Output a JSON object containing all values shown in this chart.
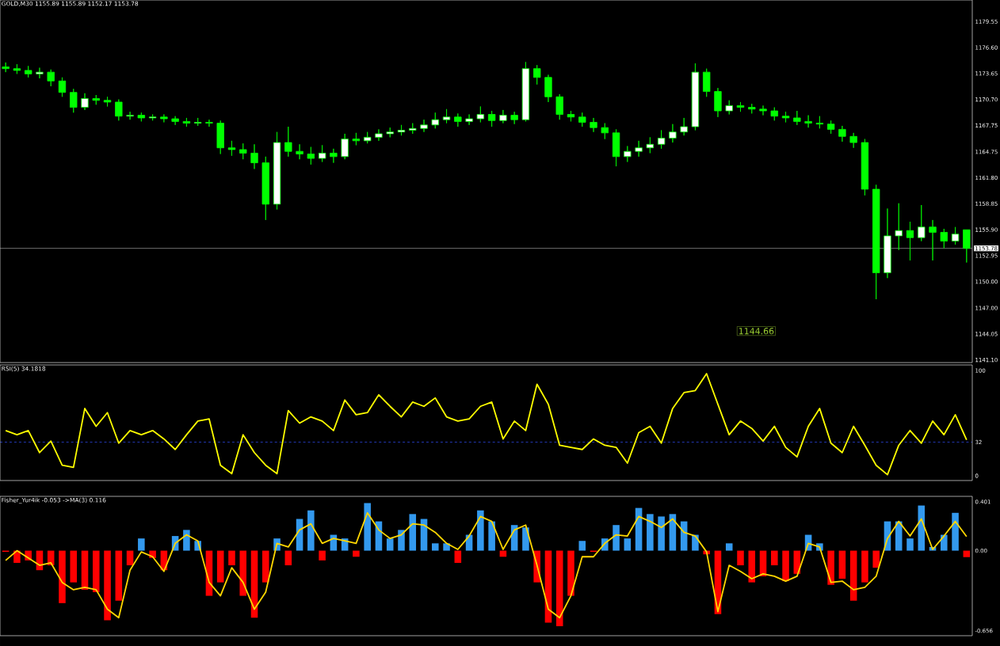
{
  "chart_data": [
    {
      "type": "candlestick",
      "title": "GOLD,M30 1155.89 1155.89 1152.17 1153.78",
      "categories": [
        null,
        null,
        null,
        null,
        null,
        null,
        null,
        null,
        null,
        null,
        null,
        null,
        null,
        null,
        null,
        null,
        null,
        null,
        null,
        null,
        null,
        null,
        null,
        null,
        null,
        null,
        null,
        null,
        null,
        null,
        null,
        null,
        null,
        null,
        null,
        null,
        null,
        null,
        null,
        null,
        null,
        null,
        null,
        null,
        null,
        null,
        null,
        null,
        null,
        null,
        null,
        null,
        null,
        null,
        null,
        null,
        null,
        null,
        null,
        null,
        null,
        null,
        null,
        null,
        null,
        null,
        null,
        null,
        null,
        null,
        null,
        null,
        null,
        null,
        null,
        null,
        null,
        null,
        null,
        null,
        null,
        null,
        null,
        null,
        null,
        null
      ],
      "ohlc": [
        [
          1174.4,
          1174.9,
          1173.8,
          1174.2
        ],
        [
          1174.2,
          1174.7,
          1173.6,
          1174.0
        ],
        [
          1174.0,
          1174.5,
          1173.2,
          1173.6
        ],
        [
          1173.6,
          1174.3,
          1173.1,
          1173.8
        ],
        [
          1173.8,
          1174.1,
          1172.2,
          1172.8
        ],
        [
          1172.8,
          1173.2,
          1171.0,
          1171.5
        ],
        [
          1171.5,
          1171.9,
          1169.2,
          1169.8
        ],
        [
          1169.8,
          1171.4,
          1169.5,
          1170.8
        ],
        [
          1170.8,
          1171.2,
          1170.1,
          1170.6
        ],
        [
          1170.6,
          1171.0,
          1169.9,
          1170.4
        ],
        [
          1170.4,
          1170.7,
          1168.3,
          1168.8
        ],
        [
          1168.8,
          1169.3,
          1168.4,
          1168.9
        ],
        [
          1168.9,
          1169.2,
          1168.2,
          1168.6
        ],
        [
          1168.6,
          1169.0,
          1168.3,
          1168.7
        ],
        [
          1168.7,
          1169.0,
          1168.1,
          1168.5
        ],
        [
          1168.5,
          1168.8,
          1167.8,
          1168.2
        ],
        [
          1168.2,
          1168.6,
          1167.6,
          1168.0
        ],
        [
          1168.0,
          1168.6,
          1167.7,
          1168.1
        ],
        [
          1168.1,
          1168.4,
          1167.6,
          1168.0
        ],
        [
          1168.0,
          1168.3,
          1164.5,
          1165.2
        ],
        [
          1165.2,
          1166.0,
          1164.3,
          1165.0
        ],
        [
          1165.0,
          1165.7,
          1163.9,
          1164.6
        ],
        [
          1164.6,
          1165.6,
          1162.8,
          1163.5
        ],
        [
          1163.5,
          1164.2,
          1157.0,
          1158.8
        ],
        [
          1158.8,
          1167.0,
          1158.2,
          1165.8
        ],
        [
          1165.8,
          1167.6,
          1164.2,
          1164.8
        ],
        [
          1164.8,
          1165.6,
          1163.9,
          1164.5
        ],
        [
          1164.5,
          1165.3,
          1163.3,
          1164.0
        ],
        [
          1164.0,
          1165.5,
          1163.6,
          1164.6
        ],
        [
          1164.6,
          1165.1,
          1163.5,
          1164.2
        ],
        [
          1164.2,
          1166.8,
          1163.9,
          1166.2
        ],
        [
          1166.2,
          1166.9,
          1165.5,
          1166.0
        ],
        [
          1166.0,
          1167.0,
          1165.7,
          1166.4
        ],
        [
          1166.4,
          1167.3,
          1166.0,
          1166.8
        ],
        [
          1166.8,
          1167.5,
          1166.4,
          1167.0
        ],
        [
          1167.0,
          1167.8,
          1166.6,
          1167.2
        ],
        [
          1167.2,
          1168.0,
          1166.8,
          1167.4
        ],
        [
          1167.4,
          1168.4,
          1167.0,
          1167.8
        ],
        [
          1167.8,
          1169.2,
          1167.4,
          1168.4
        ],
        [
          1168.4,
          1169.6,
          1168.0,
          1168.7
        ],
        [
          1168.7,
          1169.1,
          1167.6,
          1168.2
        ],
        [
          1168.2,
          1169.0,
          1167.8,
          1168.5
        ],
        [
          1168.5,
          1169.9,
          1168.1,
          1169.0
        ],
        [
          1169.0,
          1169.4,
          1167.6,
          1168.3
        ],
        [
          1168.3,
          1169.5,
          1168.0,
          1168.9
        ],
        [
          1168.9,
          1169.3,
          1167.9,
          1168.4
        ],
        [
          1168.4,
          1174.95,
          1168.2,
          1174.2
        ],
        [
          1174.2,
          1174.6,
          1172.4,
          1173.2
        ],
        [
          1173.2,
          1173.5,
          1170.4,
          1171.0
        ],
        [
          1171.0,
          1171.3,
          1168.4,
          1169.0
        ],
        [
          1169.0,
          1169.4,
          1168.2,
          1168.7
        ],
        [
          1168.7,
          1169.2,
          1167.6,
          1168.1
        ],
        [
          1168.1,
          1168.6,
          1167.0,
          1167.5
        ],
        [
          1167.5,
          1168.0,
          1166.2,
          1166.9
        ],
        [
          1166.9,
          1167.3,
          1163.1,
          1164.2
        ],
        [
          1164.2,
          1165.4,
          1163.6,
          1164.8
        ],
        [
          1164.8,
          1166.0,
          1164.2,
          1165.2
        ],
        [
          1165.2,
          1166.4,
          1164.6,
          1165.6
        ],
        [
          1165.6,
          1167.2,
          1165.1,
          1166.3
        ],
        [
          1166.3,
          1167.9,
          1165.8,
          1167.0
        ],
        [
          1167.0,
          1168.6,
          1166.6,
          1167.6
        ],
        [
          1167.6,
          1174.8,
          1167.2,
          1173.8
        ],
        [
          1173.8,
          1174.2,
          1171.0,
          1171.6
        ],
        [
          1171.6,
          1172.0,
          1168.7,
          1169.4
        ],
        [
          1169.4,
          1170.6,
          1169.0,
          1170.0
        ],
        [
          1170.0,
          1170.4,
          1169.3,
          1169.8
        ],
        [
          1169.8,
          1170.2,
          1169.1,
          1169.6
        ],
        [
          1169.6,
          1170.0,
          1168.9,
          1169.4
        ],
        [
          1169.4,
          1169.8,
          1168.3,
          1168.8
        ],
        [
          1168.8,
          1169.3,
          1168.1,
          1168.6
        ],
        [
          1168.6,
          1169.4,
          1167.8,
          1168.2
        ],
        [
          1168.2,
          1168.9,
          1167.5,
          1168.0
        ],
        [
          1168.0,
          1168.8,
          1167.4,
          1167.9
        ],
        [
          1167.9,
          1168.3,
          1166.8,
          1167.3
        ],
        [
          1167.3,
          1167.7,
          1165.9,
          1166.5
        ],
        [
          1166.5,
          1166.9,
          1165.2,
          1165.8
        ],
        [
          1165.8,
          1166.2,
          1159.8,
          1160.5
        ],
        [
          1160.5,
          1161.0,
          1148.0,
          1151.0
        ],
        [
          1151.0,
          1158.3,
          1150.4,
          1155.2
        ],
        [
          1155.2,
          1158.9,
          1153.6,
          1155.8
        ],
        [
          1155.8,
          1156.8,
          1152.4,
          1155.0
        ],
        [
          1155.0,
          1158.7,
          1154.6,
          1156.2
        ],
        [
          1156.2,
          1157.0,
          1152.4,
          1155.6
        ],
        [
          1155.6,
          1156.0,
          1153.8,
          1154.6
        ],
        [
          1154.6,
          1156.2,
          1154.2,
          1155.4
        ],
        [
          1155.89,
          1155.89,
          1152.17,
          1153.78
        ]
      ],
      "color": "#00ff00",
      "ylim": [
        1140.8,
        1182.0
      ],
      "yticks": [
        1179.55,
        {
          "value": 1176.6,
          "label": "1176.60"
        },
        1173.65,
        {
          "value": 1170.7,
          "label": "1170.70"
        },
        1167.75,
        1164.75,
        {
          "value": 1161.8,
          "label": "1161.80"
        },
        1158.85,
        {
          "value": 1155.9,
          "label": "1155.90"
        },
        1152.95,
        {
          "value": 1150,
          "label": "1150.00"
        },
        {
          "value": 1147,
          "label": "1147.00"
        },
        1144.05,
        {
          "value": 1141.1,
          "label": "1141.10"
        }
      ],
      "tick_labels": "y",
      "ref_lines": [
        {
          "axis": "y",
          "value": 1153.78,
          "label": "1153.78",
          "color": "#a0a0a0"
        }
      ],
      "annotations": [
        "1144.66"
      ]
    },
    {
      "type": "line",
      "title": "RSI(5) 34.1818",
      "categories": [
        null,
        null,
        null,
        null,
        null,
        null,
        null,
        null,
        null,
        null,
        null,
        null,
        null,
        null,
        null,
        null,
        null,
        null,
        null,
        null,
        null,
        null,
        null,
        null,
        null,
        null,
        null,
        null,
        null,
        null,
        null,
        null,
        null,
        null,
        null,
        null,
        null,
        null,
        null,
        null,
        null,
        null,
        null,
        null,
        null,
        null,
        null,
        null,
        null,
        null,
        null,
        null,
        null,
        null,
        null,
        null,
        null,
        null,
        null,
        null,
        null,
        null,
        null,
        null,
        null,
        null,
        null,
        null,
        null,
        null,
        null,
        null,
        null,
        null,
        null,
        null,
        null,
        null,
        null,
        null,
        null,
        null,
        null,
        null,
        null,
        null
      ],
      "values": [
        43,
        39,
        43,
        22,
        33,
        10,
        8,
        64,
        47,
        60,
        31,
        43,
        39,
        43,
        35,
        25,
        39,
        52,
        54,
        10,
        2,
        39,
        22,
        10,
        2,
        62,
        50,
        56,
        52,
        43,
        72,
        58,
        60,
        77,
        66,
        56,
        70,
        66,
        74,
        56,
        52,
        54,
        66,
        70,
        35,
        52,
        43,
        87,
        68,
        29,
        27,
        25,
        35,
        29,
        27,
        12,
        41,
        47,
        31,
        64,
        79,
        81,
        97,
        68,
        39,
        52,
        45,
        33,
        47,
        27,
        18,
        47,
        64,
        31,
        22,
        47,
        29,
        10,
        1,
        29,
        43,
        31,
        52,
        39,
        58,
        34.2
      ],
      "color": "#ffff00",
      "ylim": [
        -4.5,
        105.3
      ],
      "yticks": [
        0,
        32,
        100
      ],
      "tick_labels": "y",
      "ref_lines": [
        {
          "axis": "y",
          "value": 32,
          "color": "#3050ff",
          "line_style": "dashed"
        }
      ]
    },
    {
      "type": "bar",
      "title": "Fisher_Yur4ik -0.053 ->MA(3) 0.116",
      "categories": [
        null,
        null,
        null,
        null,
        null,
        null,
        null,
        null,
        null,
        null,
        null,
        null,
        null,
        null,
        null,
        null,
        null,
        null,
        null,
        null,
        null,
        null,
        null,
        null,
        null,
        null,
        null,
        null,
        null,
        null,
        null,
        null,
        null,
        null,
        null,
        null,
        null,
        null,
        null,
        null,
        null,
        null,
        null,
        null,
        null,
        null,
        null,
        null,
        null,
        null,
        null,
        null,
        null,
        null,
        null,
        null,
        null,
        null,
        null,
        null,
        null,
        null,
        null,
        null,
        null,
        null,
        null,
        null,
        null,
        null,
        null,
        null,
        null,
        null,
        null,
        null,
        null,
        null,
        null,
        null,
        null,
        null,
        null,
        null,
        null,
        null
      ],
      "values": [
        -0.01,
        -0.1,
        -0.08,
        -0.16,
        -0.12,
        -0.43,
        -0.26,
        -0.32,
        -0.34,
        -0.57,
        -0.41,
        -0.12,
        0.1,
        -0.06,
        -0.16,
        0.12,
        0.17,
        0.08,
        -0.37,
        -0.26,
        -0.12,
        -0.37,
        -0.55,
        -0.26,
        0.1,
        -0.12,
        0.26,
        0.33,
        -0.08,
        0.13,
        0.1,
        -0.05,
        0.39,
        0.24,
        0.1,
        0.17,
        0.3,
        0.26,
        0.06,
        0.06,
        -0.1,
        0.13,
        0.33,
        0.24,
        -0.05,
        0.21,
        0.19,
        -0.26,
        -0.59,
        -0.62,
        -0.37,
        0.08,
        -0.01,
        0.1,
        0.21,
        0.1,
        0.35,
        0.3,
        0.28,
        0.3,
        0.24,
        0.13,
        -0.03,
        -0.52,
        0.06,
        -0.12,
        -0.26,
        -0.21,
        -0.12,
        -0.25,
        -0.19,
        0.13,
        0.06,
        -0.28,
        -0.23,
        -0.41,
        -0.26,
        -0.14,
        0.24,
        0.24,
        0.1,
        0.37,
        0.03,
        0.13,
        0.31,
        -0.053
      ],
      "colors": [
        "#ff0000",
        "#ff0000",
        "#ff0000",
        "#ff0000",
        "#ff0000",
        "#ff0000",
        "#ff0000",
        "#ff0000",
        "#ff0000",
        "#ff0000",
        "#ff0000",
        "#ff0000",
        "#3399ee",
        "#ff0000",
        "#ff0000",
        "#3399ee",
        "#3399ee",
        "#3399ee",
        "#ff0000",
        "#ff0000",
        "#ff0000",
        "#ff0000",
        "#ff0000",
        "#ff0000",
        "#3399ee",
        "#ff0000",
        "#3399ee",
        "#3399ee",
        "#ff0000",
        "#3399ee",
        "#3399ee",
        "#ff0000",
        "#3399ee",
        "#3399ee",
        "#3399ee",
        "#3399ee",
        "#3399ee",
        "#3399ee",
        "#3399ee",
        "#3399ee",
        "#ff0000",
        "#3399ee",
        "#3399ee",
        "#3399ee",
        "#ff0000",
        "#3399ee",
        "#3399ee",
        "#ff0000",
        "#ff0000",
        "#ff0000",
        "#ff0000",
        "#3399ee",
        "#ff0000",
        "#3399ee",
        "#3399ee",
        "#3399ee",
        "#3399ee",
        "#3399ee",
        "#3399ee",
        "#3399ee",
        "#3399ee",
        "#3399ee",
        "#ff0000",
        "#ff0000",
        "#3399ee",
        "#ff0000",
        "#ff0000",
        "#ff0000",
        "#ff0000",
        "#ff0000",
        "#ff0000",
        "#3399ee",
        "#3399ee",
        "#ff0000",
        "#ff0000",
        "#ff0000",
        "#ff0000",
        "#ff0000",
        "#3399ee",
        "#3399ee",
        "#3399ee",
        "#3399ee",
        "#3399ee",
        "#3399ee",
        "#3399ee",
        "#ff0000"
      ],
      "ylim": [
        -0.697,
        0.445
      ],
      "yticks": [
        0.401,
        {
          "value": 0,
          "label": "0.00"
        },
        -0.656
      ],
      "tick_labels": "y"
    },
    {
      "type": "line",
      "categories": [
        null,
        null,
        null,
        null,
        null,
        null,
        null,
        null,
        null,
        null,
        null,
        null,
        null,
        null,
        null,
        null,
        null,
        null,
        null,
        null,
        null,
        null,
        null,
        null,
        null,
        null,
        null,
        null,
        null,
        null,
        null,
        null,
        null,
        null,
        null,
        null,
        null,
        null,
        null,
        null,
        null,
        null,
        null,
        null,
        null,
        null,
        null,
        null,
        null,
        null,
        null,
        null,
        null,
        null,
        null,
        null,
        null,
        null,
        null,
        null,
        null,
        null,
        null,
        null,
        null,
        null,
        null,
        null,
        null,
        null,
        null,
        null,
        null,
        null,
        null,
        null,
        null,
        null,
        null,
        null,
        null,
        null,
        null,
        null,
        null,
        null
      ],
      "color": "#ffd700",
      "values": [
        -0.08,
        0,
        -0.06,
        -0.12,
        -0.1,
        -0.26,
        -0.32,
        -0.3,
        -0.32,
        -0.48,
        -0.55,
        -0.16,
        -0.01,
        -0.05,
        -0.17,
        0.06,
        0.13,
        0.08,
        -0.26,
        -0.37,
        -0.14,
        -0.26,
        -0.48,
        -0.34,
        0.06,
        0.03,
        0.17,
        0.22,
        0.06,
        0.1,
        0.08,
        0.06,
        0.31,
        0.17,
        0.1,
        0.13,
        0.22,
        0.21,
        0.15,
        0.06,
        0.01,
        0.12,
        0.28,
        0.24,
        0.01,
        0.17,
        0.21,
        -0.12,
        -0.48,
        -0.55,
        -0.37,
        -0.05,
        -0.05,
        0.06,
        0.13,
        0.12,
        0.28,
        0.24,
        0.19,
        0.26,
        0.15,
        0.12,
        -0.01,
        -0.5,
        -0.12,
        -0.17,
        -0.23,
        -0.19,
        -0.21,
        -0.25,
        -0.21,
        0.06,
        0.03,
        -0.26,
        -0.25,
        -0.32,
        -0.3,
        -0.21,
        0.1,
        0.24,
        0.12,
        0.26,
        0.01,
        0.12,
        0.24,
        0.116
      ],
      "ylim": [
        -0.697,
        0.445
      ],
      "tick_labels": false
    }
  ]
}
